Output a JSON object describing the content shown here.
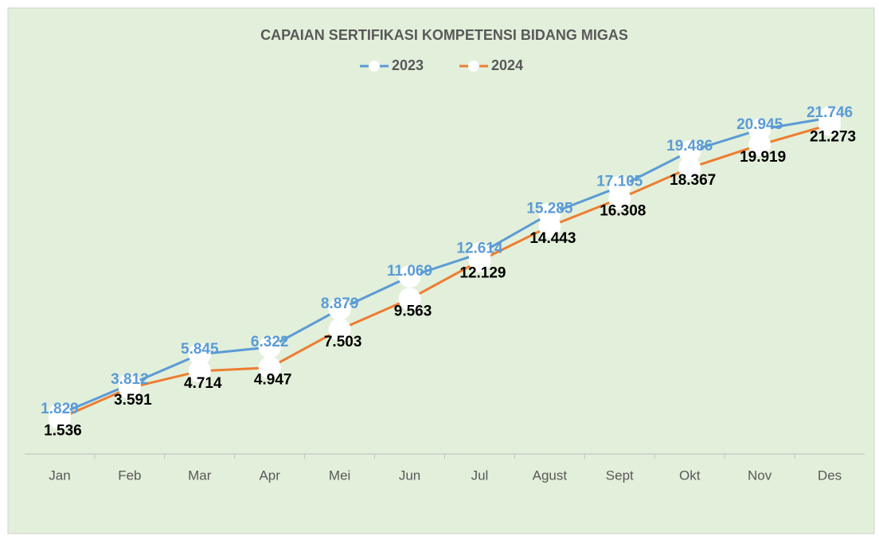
{
  "chart_data": {
    "type": "line",
    "title": "CAPAIAN SERTIFIKASI KOMPETENSI BIDANG MIGAS",
    "categories": [
      "Jan",
      "Feb",
      "Mar",
      "Apr",
      "Mei",
      "Jun",
      "Jul",
      "Agust",
      "Sept",
      "Okt",
      "Nov",
      "Des"
    ],
    "series": [
      {
        "name": "2023",
        "color": "#5b9bd5",
        "values": [
          1829,
          3812,
          5845,
          6322,
          8879,
          11069,
          12614,
          15285,
          17105,
          19486,
          20945,
          21746
        ],
        "value_labels": [
          "1.829",
          "3.812",
          "5.845",
          "6.322",
          "8.879",
          "11.069",
          "12.614",
          "15.285",
          "17.105",
          "19.486",
          "20.945",
          "21.746"
        ]
      },
      {
        "name": "2024",
        "color": "#ed7d31",
        "values": [
          1536,
          3591,
          4714,
          4947,
          7503,
          9563,
          12129,
          14443,
          16308,
          18367,
          19919,
          21273
        ],
        "value_labels": [
          "1.536",
          "3.591",
          "4.714",
          "4.947",
          "7.503",
          "9.563",
          "12.129",
          "14.443",
          "16.308",
          "18.367",
          "19.919",
          "21.273"
        ]
      }
    ],
    "ylim": [
      0,
      25000
    ]
  }
}
